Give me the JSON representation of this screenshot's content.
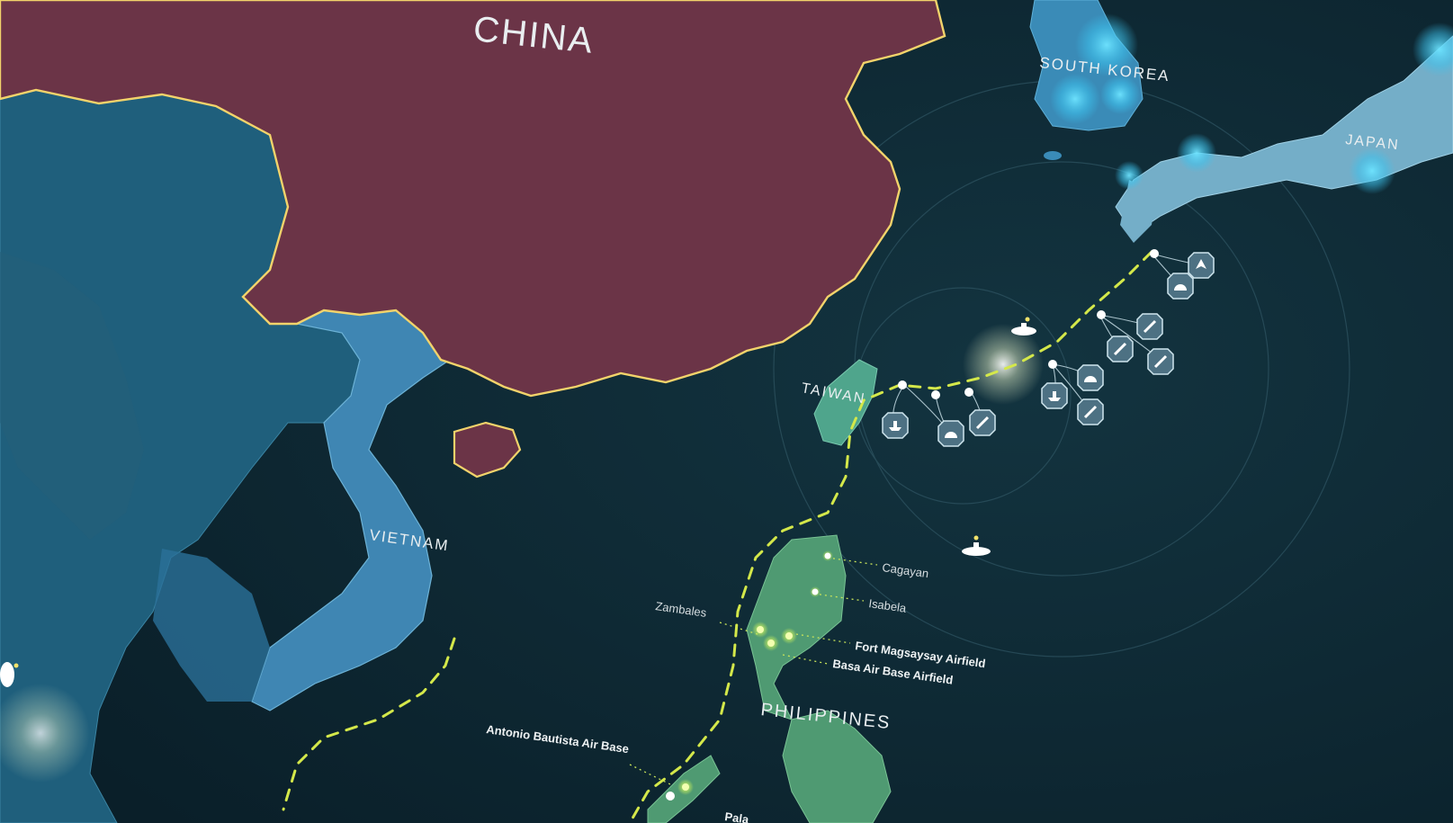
{
  "countries": {
    "china": "CHINA",
    "south_korea": "SOUTH KOREA",
    "japan": "JAPAN",
    "taiwan": "TAIWAN",
    "vietnam": "VIETNAM",
    "philippines": "PHILIPPINES"
  },
  "sites": {
    "cagayan": "Cagayan",
    "isabela": "Isabela",
    "zambales": "Zambales",
    "fort_magsaysay": "Fort Magsaysay Airfield",
    "basa": "Basa Air Base Airfield",
    "antonio_bautista": "Antonio Bautista Air Base",
    "partial": "Pala"
  },
  "colors": {
    "ocean": "#0d2530",
    "china_fill": "#6b3447",
    "china_border": "#f2d36b",
    "mainland_blue": "#2a6d8a",
    "vietnam_blue": "#3f86b3",
    "japan_fill": "#74aec8",
    "philippines_fill": "#4f9a72",
    "taiwan_fill": "#4fa58c",
    "dashed_line": "#d4e84a",
    "node_light": "#ffffff",
    "badge": "#4d7183"
  },
  "icons": [
    "fighter-jet-icon",
    "radar-dome-icon",
    "missile-icon",
    "ship-icon",
    "submarine-icon"
  ]
}
